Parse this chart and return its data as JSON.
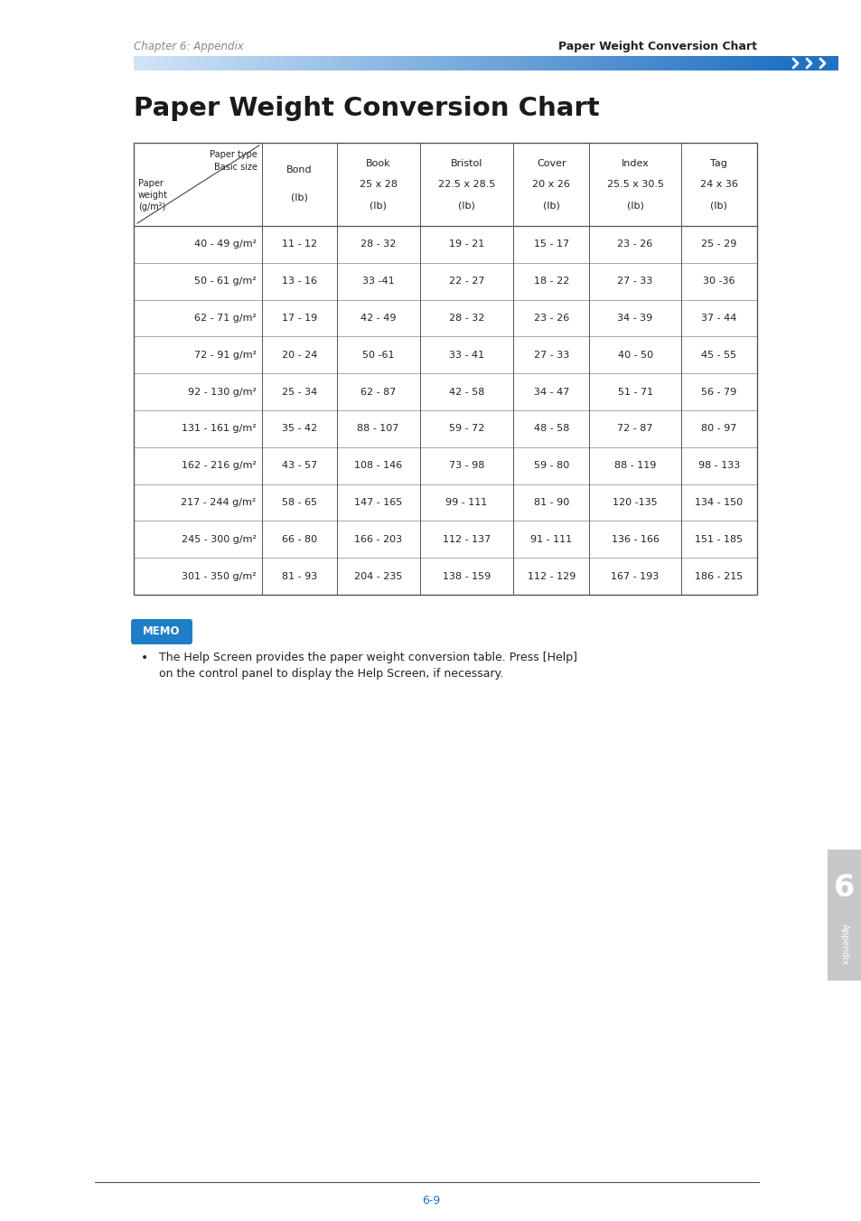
{
  "page_title": "Paper Weight Conversion Chart",
  "chapter_left": "Chapter 6: Appendix",
  "chapter_right": "Paper Weight Conversion Chart",
  "page_number": "6-9",
  "tab_number": "6",
  "tab_label": "Appendix",
  "header_cols": [
    [
      "Bond",
      "(lb)"
    ],
    [
      "Book",
      "25 x 28",
      "(lb)"
    ],
    [
      "Bristol",
      "22.5 x 28.5",
      "(lb)"
    ],
    [
      "Cover",
      "20 x 26",
      "(lb)"
    ],
    [
      "Index",
      "25.5 x 30.5",
      "(lb)"
    ],
    [
      "Tag",
      "24 x 36",
      "(lb)"
    ]
  ],
  "row_labels": [
    "40 - 49 g/m²",
    "50 - 61 g/m²",
    "62 - 71 g/m²",
    "72 - 91 g/m²",
    "92 - 130 g/m²",
    "131 - 161 g/m²",
    "162 - 216 g/m²",
    "217 - 244 g/m²",
    "245 - 300 g/m²",
    "301 - 350 g/m²"
  ],
  "table_data": [
    [
      "11 - 12",
      "28 - 32",
      "19 - 21",
      "15 - 17",
      "23 - 26",
      "25 - 29"
    ],
    [
      "13 - 16",
      "33 -41",
      "22 - 27",
      "18 - 22",
      "27 - 33",
      "30 -36"
    ],
    [
      "17 - 19",
      "42 - 49",
      "28 - 32",
      "23 - 26",
      "34 - 39",
      "37 - 44"
    ],
    [
      "20 - 24",
      "50 -61",
      "33 - 41",
      "27 - 33",
      "40 - 50",
      "45 - 55"
    ],
    [
      "25 - 34",
      "62 - 87",
      "42 - 58",
      "34 - 47",
      "51 - 71",
      "56 - 79"
    ],
    [
      "35 - 42",
      "88 - 107",
      "59 - 72",
      "48 - 58",
      "72 - 87",
      "80 - 97"
    ],
    [
      "43 - 57",
      "108 - 146",
      "73 - 98",
      "59 - 80",
      "88 - 119",
      "98 - 133"
    ],
    [
      "58 - 65",
      "147 - 165",
      "99 - 111",
      "81 - 90",
      "120 -135",
      "134 - 150"
    ],
    [
      "66 - 80",
      "166 - 203",
      "112 - 137",
      "91 - 111",
      "136 - 166",
      "151 - 185"
    ],
    [
      "81 - 93",
      "204 - 235",
      "138 - 159",
      "112 - 129",
      "167 - 193",
      "186 - 215"
    ]
  ],
  "memo_text_line1": "The Help Screen provides the paper weight conversion table. Press [Help]",
  "memo_text_line2": "on the control panel to display the Help Screen, if necessary.",
  "memo_bg": "#1e7ec8",
  "memo_label": "MEMO",
  "gradient_start": "#d0e4f7",
  "gradient_end": "#2272c3",
  "arrow_color": "#2272c3",
  "tab_bg": "#c8c8c8",
  "table_border": "#555555",
  "table_inner": "#aaaaaa",
  "text_dark": "#222222",
  "text_gray": "#888888"
}
